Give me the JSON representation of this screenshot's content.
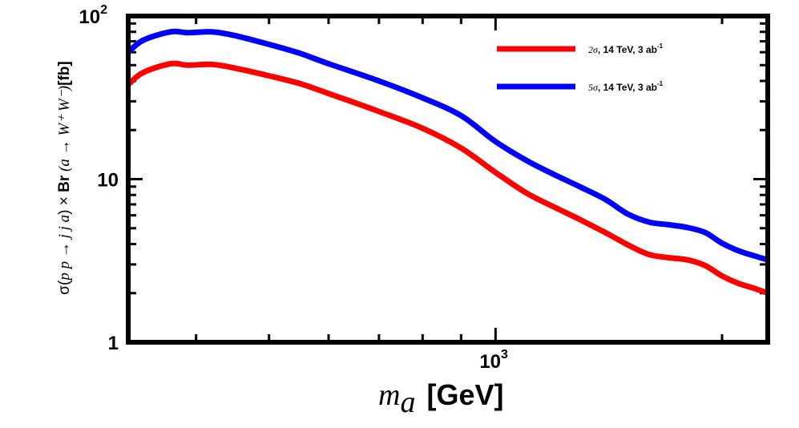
{
  "chart_data": {
    "type": "line",
    "xscale": "log",
    "yscale": "log",
    "xlim": [
      325,
      2300
    ],
    "ylim": [
      1,
      100
    ],
    "xlabel": {
      "symbol": "m",
      "subscript": "a",
      "unit": "[GeV]"
    },
    "ylabel": {
      "prefix": "σ(",
      "process": "p p → j j a",
      "times": ") × ",
      "br": "Br",
      "decay": " (a → W⁺ W⁻)",
      "unit": "[fb]"
    },
    "y_ticks": [
      {
        "value": 1,
        "label": "1"
      },
      {
        "value": 10,
        "label": "10"
      },
      {
        "value": 100,
        "label": "10",
        "exponent": "2"
      }
    ],
    "x_ticks": [
      {
        "value": 1000,
        "label": "10",
        "exponent": "3"
      }
    ],
    "legend_position": "top-right",
    "series": [
      {
        "name": "2σ, 14 TeV, 3 ab-1",
        "legend": {
          "sig": "2σ",
          "energy": ", 14 TeV, 3 ab",
          "exp": "-1"
        },
        "color": "#ff0000",
        "x": [
          325,
          340,
          370,
          390,
          420,
          450,
          500,
          550,
          600,
          700,
          800,
          900,
          1000,
          1100,
          1200,
          1300,
          1400,
          1500,
          1600,
          1700,
          1800,
          1900,
          2000,
          2100,
          2200,
          2300
        ],
        "y": [
          38,
          45,
          51,
          50,
          50.5,
          48,
          43,
          38.5,
          33.5,
          26,
          20.5,
          15.5,
          11,
          8.2,
          6.7,
          5.6,
          4.7,
          3.95,
          3.45,
          3.3,
          3.2,
          2.95,
          2.55,
          2.3,
          2.15,
          2.0
        ]
      },
      {
        "name": "5σ, 14 TeV, 3 ab-1",
        "legend": {
          "sig": "5σ",
          "energy": ", 14 TeV, 3 ab",
          "exp": "-1"
        },
        "color": "#0000ff",
        "x": [
          325,
          340,
          370,
          390,
          420,
          450,
          500,
          550,
          600,
          700,
          800,
          900,
          1000,
          1100,
          1200,
          1300,
          1400,
          1500,
          1600,
          1700,
          1800,
          1900,
          2000,
          2100,
          2200,
          2300
        ],
        "y": [
          60,
          71,
          80,
          79,
          80,
          76,
          67,
          59,
          51,
          40,
          31.5,
          24.5,
          17,
          13,
          10.6,
          8.9,
          7.5,
          6.1,
          5.45,
          5.25,
          5.05,
          4.7,
          4.05,
          3.65,
          3.4,
          3.2
        ]
      }
    ]
  }
}
